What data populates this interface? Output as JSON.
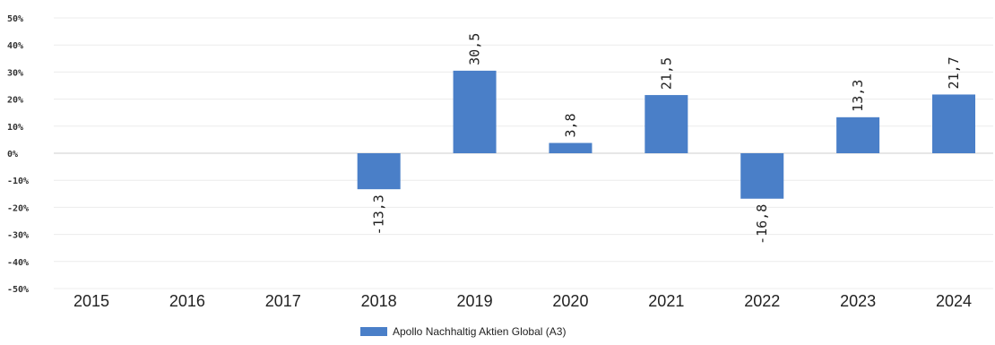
{
  "chart_data": {
    "type": "bar",
    "categories": [
      "2015",
      "2016",
      "2017",
      "2018",
      "2019",
      "2020",
      "2021",
      "2022",
      "2023",
      "2024"
    ],
    "series": [
      {
        "name": "Apollo Nachhaltig Aktien Global (A3)",
        "values": [
          null,
          null,
          null,
          -13.3,
          30.5,
          3.8,
          21.5,
          -16.8,
          13.3,
          21.7
        ],
        "labels": [
          "",
          "",
          "",
          "-13,3",
          "30,5",
          "3,8",
          "21,5",
          "-16,8",
          "13,3",
          "21,7"
        ],
        "color": "#4a7fc8"
      }
    ],
    "ylim": [
      -50,
      50
    ],
    "yticks": [
      50,
      40,
      30,
      20,
      10,
      0,
      -10,
      -20,
      -30,
      -40,
      -50
    ],
    "ytick_labels": [
      "50%",
      "40%",
      "30%",
      "20%",
      "10%",
      "0%",
      "-10%",
      "-20%",
      "-30%",
      "-40%",
      "-50%"
    ],
    "grid": true,
    "legend_position": "bottom"
  }
}
